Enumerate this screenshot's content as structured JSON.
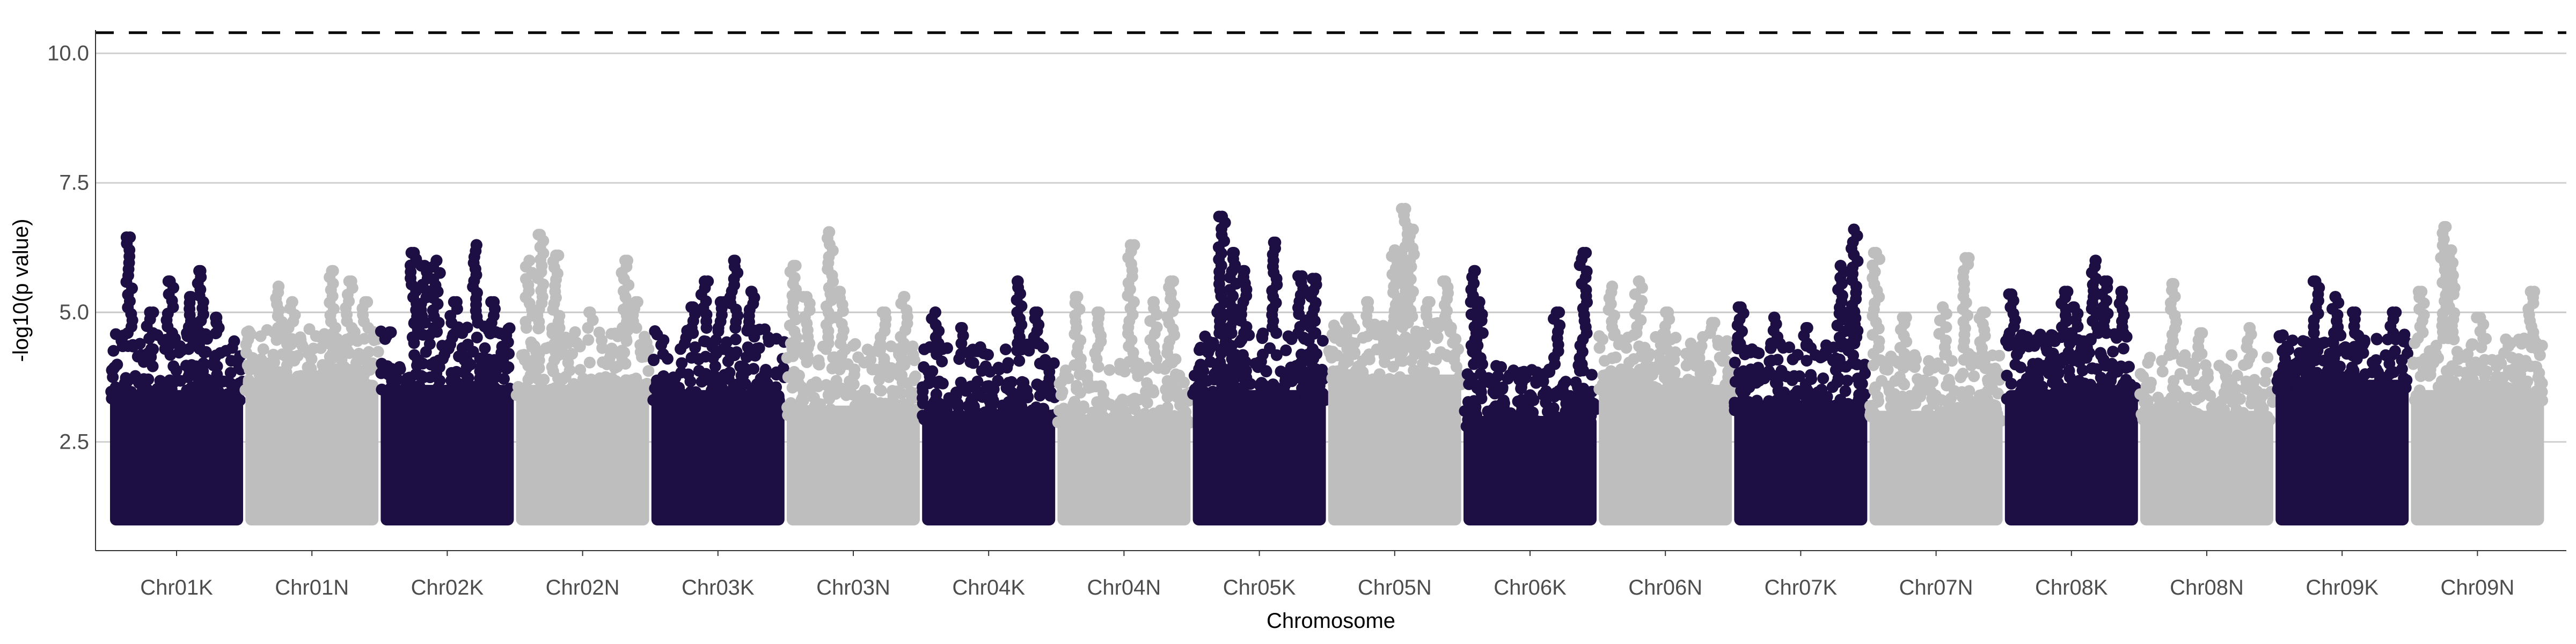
{
  "chart_data": {
    "type": "scatter",
    "subtype": "manhattan",
    "xlabel": "Chromosome",
    "ylabel": "-log10(p value)",
    "ylim": [
      0.4,
      10.45
    ],
    "yticks": [
      2.5,
      5.0,
      7.5,
      10.0
    ],
    "ytick_labels": [
      "2.5",
      "5.0",
      "7.5",
      "10.0"
    ],
    "grid": "horizontal major",
    "threshold_lines": [
      {
        "y": 10.4,
        "style": "dashed",
        "color": "#000000"
      },
      {
        "y": 5.0,
        "style": "solid",
        "color": "#c8c8c8"
      }
    ],
    "point_min": 1.0,
    "colors": {
      "odd": "#1d0e43",
      "even": "#bebebe"
    },
    "categories": [
      "Chr01K",
      "Chr01N",
      "Chr02K",
      "Chr02N",
      "Chr03K",
      "Chr03N",
      "Chr04K",
      "Chr04N",
      "Chr05K",
      "Chr05N",
      "Chr06K",
      "Chr06N",
      "Chr07K",
      "Chr07N",
      "Chr08K",
      "Chr08N",
      "Chr09K",
      "Chr09N"
    ],
    "series": [
      {
        "chromosome": "Chr01K",
        "color_key": "odd",
        "bulk_top": 3.5,
        "cloud_top": 4.6,
        "peaks": [
          [
            0.15,
            6.45
          ],
          [
            0.3,
            5.0
          ],
          [
            0.45,
            5.6
          ],
          [
            0.6,
            5.3
          ],
          [
            0.68,
            5.8
          ],
          [
            0.8,
            4.9
          ]
        ]
      },
      {
        "chromosome": "Chr01N",
        "color_key": "even",
        "bulk_top": 3.7,
        "cloud_top": 4.7,
        "peaks": [
          [
            0.25,
            5.5
          ],
          [
            0.35,
            5.2
          ],
          [
            0.65,
            5.8
          ],
          [
            0.78,
            5.6
          ],
          [
            0.9,
            5.2
          ]
        ]
      },
      {
        "chromosome": "Chr02K",
        "color_key": "odd",
        "bulk_top": 3.6,
        "cloud_top": 4.8,
        "peaks": [
          [
            0.25,
            6.15
          ],
          [
            0.33,
            5.9
          ],
          [
            0.42,
            6.0
          ],
          [
            0.55,
            5.2
          ],
          [
            0.72,
            6.3
          ],
          [
            0.85,
            5.2
          ]
        ]
      },
      {
        "chromosome": "Chr02N",
        "color_key": "even",
        "bulk_top": 3.6,
        "cloud_top": 4.7,
        "peaks": [
          [
            0.1,
            6.0
          ],
          [
            0.18,
            6.5
          ],
          [
            0.3,
            6.1
          ],
          [
            0.55,
            5.0
          ],
          [
            0.82,
            6.0
          ],
          [
            0.9,
            5.2
          ]
        ]
      },
      {
        "chromosome": "Chr03K",
        "color_key": "odd",
        "bulk_top": 3.5,
        "cloud_top": 4.7,
        "peaks": [
          [
            0.3,
            5.1
          ],
          [
            0.4,
            5.6
          ],
          [
            0.52,
            5.2
          ],
          [
            0.62,
            6.0
          ],
          [
            0.75,
            5.4
          ]
        ]
      },
      {
        "chromosome": "Chr03N",
        "color_key": "even",
        "bulk_top": 3.2,
        "cloud_top": 4.4,
        "peaks": [
          [
            0.05,
            5.9
          ],
          [
            0.15,
            5.3
          ],
          [
            0.32,
            6.55
          ],
          [
            0.4,
            5.4
          ],
          [
            0.72,
            5.0
          ],
          [
            0.88,
            5.3
          ]
        ]
      },
      {
        "chromosome": "Chr04K",
        "color_key": "odd",
        "bulk_top": 3.1,
        "cloud_top": 4.4,
        "peaks": [
          [
            0.1,
            5.0
          ],
          [
            0.3,
            4.7
          ],
          [
            0.72,
            5.6
          ],
          [
            0.85,
            5.0
          ]
        ]
      },
      {
        "chromosome": "Chr04N",
        "color_key": "even",
        "bulk_top": 3.0,
        "cloud_top": 4.1,
        "peaks": [
          [
            0.15,
            5.3
          ],
          [
            0.3,
            5.0
          ],
          [
            0.55,
            6.3
          ],
          [
            0.72,
            5.2
          ],
          [
            0.85,
            5.6
          ]
        ]
      },
      {
        "chromosome": "Chr05K",
        "color_key": "odd",
        "bulk_top": 3.5,
        "cloud_top": 4.6,
        "peaks": [
          [
            0.2,
            5.0
          ],
          [
            0.22,
            6.85
          ],
          [
            0.3,
            6.15
          ],
          [
            0.38,
            5.8
          ],
          [
            0.62,
            6.35
          ],
          [
            0.82,
            5.7
          ],
          [
            0.9,
            5.65
          ]
        ]
      },
      {
        "chromosome": "Chr05N",
        "color_key": "even",
        "bulk_top": 3.8,
        "cloud_top": 4.8,
        "peaks": [
          [
            0.15,
            4.9
          ],
          [
            0.3,
            5.2
          ],
          [
            0.5,
            6.2
          ],
          [
            0.58,
            7.0
          ],
          [
            0.62,
            6.6
          ],
          [
            0.75,
            5.2
          ],
          [
            0.88,
            5.6
          ]
        ]
      },
      {
        "chromosome": "Chr06K",
        "color_key": "odd",
        "bulk_top": 3.0,
        "cloud_top": 4.0,
        "peaks": [
          [
            0.08,
            5.8
          ],
          [
            0.12,
            5.2
          ],
          [
            0.7,
            5.0
          ],
          [
            0.9,
            6.15
          ]
        ]
      },
      {
        "chromosome": "Chr06N",
        "color_key": "even",
        "bulk_top": 3.6,
        "cloud_top": 4.6,
        "peaks": [
          [
            0.1,
            5.5
          ],
          [
            0.3,
            5.6
          ],
          [
            0.52,
            5.0
          ],
          [
            0.85,
            4.8
          ]
        ]
      },
      {
        "chromosome": "Chr07K",
        "color_key": "odd",
        "bulk_top": 3.3,
        "cloud_top": 4.4,
        "peaks": [
          [
            0.05,
            5.1
          ],
          [
            0.3,
            4.9
          ],
          [
            0.55,
            4.7
          ],
          [
            0.8,
            5.9
          ],
          [
            0.88,
            5.0
          ],
          [
            0.9,
            6.6
          ]
        ]
      },
      {
        "chromosome": "Chr07N",
        "color_key": "even",
        "bulk_top": 3.1,
        "cloud_top": 4.2,
        "peaks": [
          [
            0.05,
            6.15
          ],
          [
            0.25,
            4.9
          ],
          [
            0.55,
            5.1
          ],
          [
            0.72,
            6.05
          ],
          [
            0.85,
            5.0
          ]
        ]
      },
      {
        "chromosome": "Chr08K",
        "color_key": "odd",
        "bulk_top": 3.5,
        "cloud_top": 4.6,
        "peaks": [
          [
            0.05,
            5.35
          ],
          [
            0.45,
            5.4
          ],
          [
            0.52,
            5.1
          ],
          [
            0.68,
            6.0
          ],
          [
            0.75,
            5.6
          ],
          [
            0.88,
            5.4
          ]
        ]
      },
      {
        "chromosome": "Chr08N",
        "color_key": "even",
        "bulk_top": 3.1,
        "cloud_top": 4.2,
        "peaks": [
          [
            0.25,
            5.55
          ],
          [
            0.45,
            4.6
          ],
          [
            0.82,
            4.7
          ]
        ]
      },
      {
        "chromosome": "Chr09K",
        "color_key": "odd",
        "bulk_top": 3.7,
        "cloud_top": 4.6,
        "peaks": [
          [
            0.3,
            5.6
          ],
          [
            0.45,
            5.3
          ],
          [
            0.6,
            5.0
          ],
          [
            0.88,
            5.0
          ]
        ]
      },
      {
        "chromosome": "Chr09N",
        "color_key": "even",
        "bulk_top": 3.5,
        "cloud_top": 4.5,
        "peaks": [
          [
            0.08,
            5.4
          ],
          [
            0.25,
            6.65
          ],
          [
            0.3,
            6.2
          ],
          [
            0.52,
            4.9
          ],
          [
            0.9,
            5.4
          ]
        ]
      }
    ]
  }
}
